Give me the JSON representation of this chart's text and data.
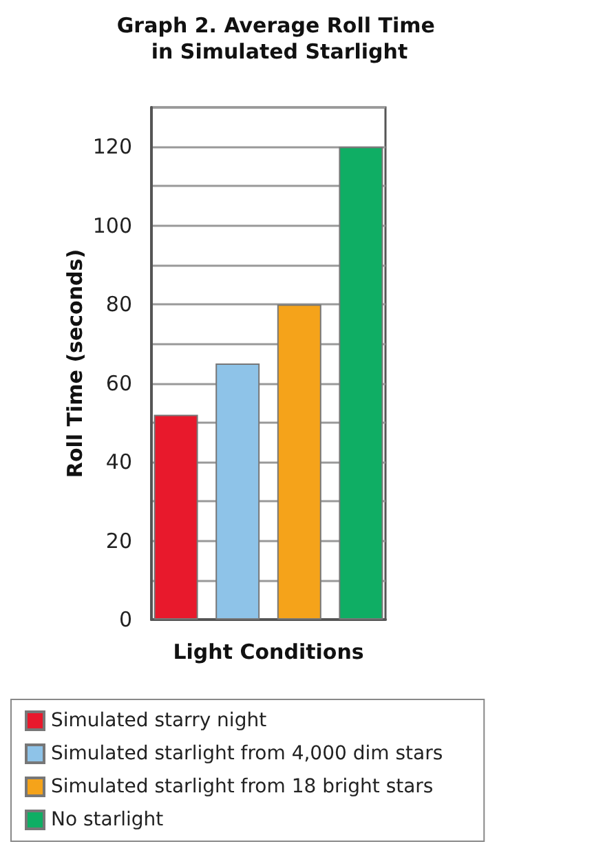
{
  "chart_data": {
    "type": "bar",
    "title": "Graph 2. Average Roll Time in Simulated Starlight",
    "xlabel": "Light Conditions",
    "ylabel": "Roll Time (seconds)",
    "categories": [
      null
    ],
    "series": [
      {
        "name": "Simulated starry night",
        "color": "#e8192c",
        "values": [
          52
        ]
      },
      {
        "name": "Simulated starlight from 4,000 dim stars",
        "color": "#8ec3e8",
        "values": [
          65
        ]
      },
      {
        "name": "Simulated starlight from 18 bright stars",
        "color": "#f5a31a",
        "values": [
          80
        ]
      },
      {
        "name": "No starlight",
        "color": "#0fae64",
        "values": [
          120
        ]
      }
    ],
    "ylim": [
      0,
      130
    ],
    "yticks": [
      0,
      {
        "value": 10,
        "label": null
      },
      20,
      {
        "value": 30,
        "label": null
      },
      40,
      {
        "value": 50,
        "label": null
      },
      60,
      {
        "value": 70,
        "label": null
      },
      80,
      {
        "value": 90,
        "label": null
      },
      100,
      {
        "value": 110,
        "label": null
      },
      120,
      {
        "value": 130,
        "label": null
      }
    ],
    "grid": "y",
    "legend": "bottom"
  }
}
